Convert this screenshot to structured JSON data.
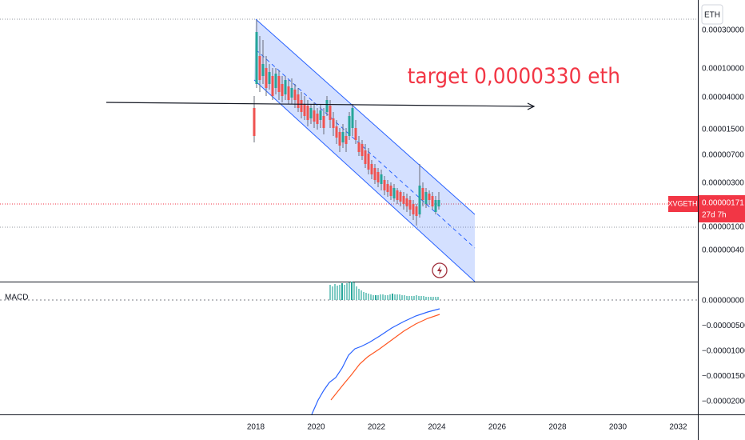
{
  "toolbar": {
    "currency_button": "ETH"
  },
  "price_axis": {
    "labels": [
      "0.00030000",
      "0.00010000",
      "0.00004000",
      "0.00001500",
      "0.00000700",
      "0.00000300",
      "0.00000100",
      "0.00000040"
    ],
    "symbol_tag": {
      "symbol": "XVGETH",
      "price": "0.00000171",
      "countdown": "27d 7h"
    }
  },
  "annotation": "target 0,0000330 eth",
  "macd_panel": {
    "label": "MACD",
    "axis_labels": [
      "0.00000000",
      "−0.00000500",
      "−0.00001000",
      "−0.00001500",
      "−0.00002000"
    ]
  },
  "time_axis": [
    "2018",
    "2020",
    "2022",
    "2024",
    "2026",
    "2028",
    "2030",
    "2032"
  ]
}
